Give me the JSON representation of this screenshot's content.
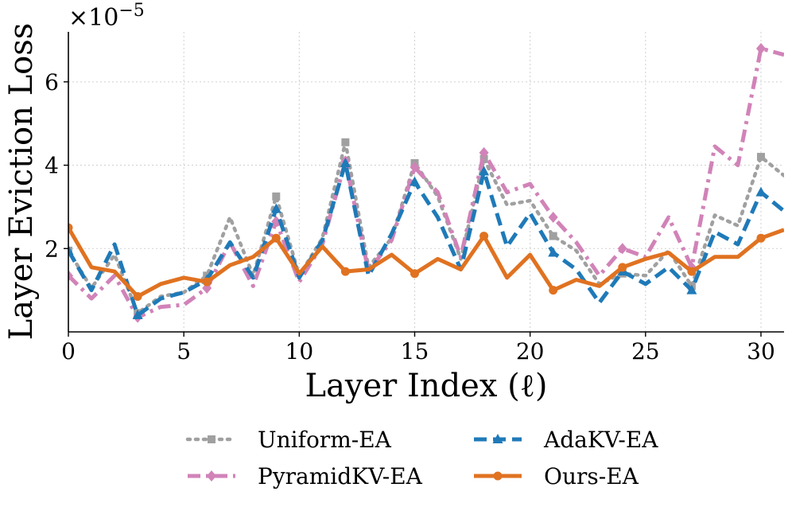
{
  "chart_data": {
    "type": "line",
    "xlabel": "Layer Index (ℓ)",
    "ylabel": "Layer Eviction Loss",
    "scale_label": "×10",
    "scale_exponent": "−5",
    "xlim": [
      0,
      31
    ],
    "ylim": [
      0,
      7.2
    ],
    "xticks": [
      0,
      5,
      10,
      15,
      20,
      25,
      30
    ],
    "yticks": [
      2,
      4,
      6
    ],
    "grid": true,
    "legend_position": "bottom-center",
    "x": [
      0,
      1,
      2,
      3,
      4,
      5,
      6,
      7,
      8,
      9,
      10,
      11,
      12,
      13,
      14,
      15,
      16,
      17,
      18,
      19,
      20,
      21,
      22,
      23,
      24,
      25,
      26,
      27,
      28,
      29,
      30,
      31
    ],
    "series": [
      {
        "name": "Uniform-EA",
        "color": "#a0a0a0",
        "dash": "dotted",
        "marker": "square",
        "values": [
          1.95,
          1.05,
          1.85,
          0.45,
          0.85,
          0.95,
          1.35,
          2.75,
          1.35,
          3.25,
          1.35,
          2.25,
          4.55,
          1.55,
          2.25,
          4.05,
          3.25,
          1.75,
          4.15,
          3.05,
          3.15,
          2.3,
          1.95,
          1.15,
          1.4,
          1.35,
          1.95,
          1.1,
          2.8,
          2.55,
          4.2,
          3.75
        ]
      },
      {
        "name": "PyramidKV-EA",
        "color": "#d183b8",
        "dash": "dashdot",
        "marker": "diamond",
        "values": [
          1.35,
          0.8,
          1.35,
          0.35,
          0.6,
          0.65,
          1.05,
          2.15,
          1.1,
          2.65,
          1.2,
          2.1,
          4.1,
          1.45,
          2.2,
          3.95,
          3.35,
          1.8,
          4.3,
          3.35,
          3.55,
          2.75,
          2.15,
          1.35,
          2.0,
          1.8,
          2.75,
          1.55,
          4.45,
          4.0,
          6.8,
          6.65
        ]
      },
      {
        "name": "AdaKV-EA",
        "color": "#1f7ab8",
        "dash": "dashed",
        "marker": "triangle",
        "values": [
          1.95,
          1.0,
          2.1,
          0.4,
          0.8,
          0.95,
          1.25,
          2.15,
          1.3,
          2.95,
          1.3,
          2.2,
          4.05,
          1.35,
          2.35,
          3.6,
          2.75,
          1.5,
          3.85,
          2.05,
          2.85,
          1.9,
          1.5,
          0.7,
          1.45,
          1.15,
          1.55,
          1.0,
          2.4,
          2.1,
          3.35,
          2.9
        ]
      },
      {
        "name": "Ours-EA",
        "color": "#e07221",
        "dash": "solid",
        "marker": "circle",
        "values": [
          2.5,
          1.55,
          1.45,
          0.85,
          1.15,
          1.3,
          1.2,
          1.6,
          1.8,
          2.25,
          1.4,
          2.05,
          1.45,
          1.5,
          1.85,
          1.4,
          1.75,
          1.5,
          2.3,
          1.3,
          1.85,
          1.0,
          1.25,
          1.1,
          1.55,
          1.75,
          1.9,
          1.45,
          1.8,
          1.8,
          2.25,
          2.45
        ]
      }
    ],
    "marker_layers": [
      0,
      3,
      6,
      9,
      12,
      15,
      18,
      21,
      24,
      27,
      30
    ]
  }
}
